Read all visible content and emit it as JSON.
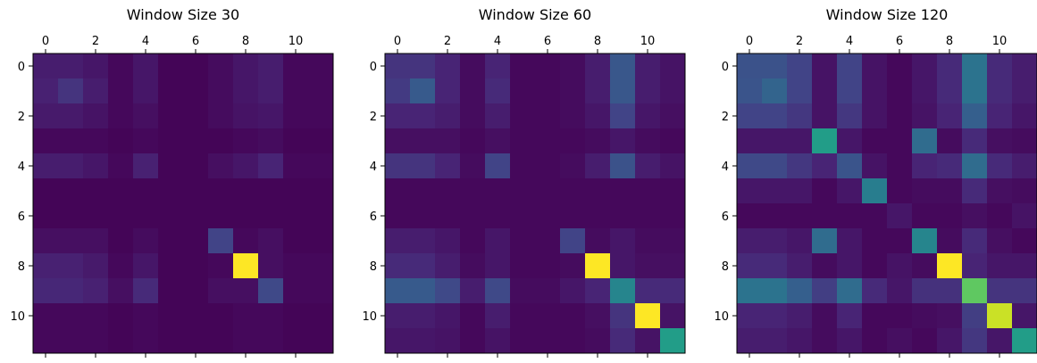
{
  "chart_data": [
    {
      "type": "heatmap",
      "title": "Window Size 30",
      "x_ticks": [
        "0",
        "2",
        "4",
        "6",
        "8",
        "10"
      ],
      "y_ticks": [
        "0",
        "2",
        "4",
        "6",
        "8",
        "10"
      ],
      "colormap": "viridis",
      "value_range": [
        0,
        1
      ],
      "matrix": [
        [
          0.08,
          0.08,
          0.06,
          0.02,
          0.06,
          0.01,
          0.01,
          0.03,
          0.06,
          0.08,
          0.02,
          0.02
        ],
        [
          0.09,
          0.15,
          0.08,
          0.02,
          0.06,
          0.01,
          0.01,
          0.03,
          0.06,
          0.08,
          0.02,
          0.02
        ],
        [
          0.07,
          0.07,
          0.05,
          0.02,
          0.04,
          0.01,
          0.01,
          0.03,
          0.05,
          0.06,
          0.02,
          0.02
        ],
        [
          0.02,
          0.02,
          0.02,
          0.01,
          0.02,
          0.01,
          0.01,
          0.01,
          0.02,
          0.03,
          0.01,
          0.01
        ],
        [
          0.08,
          0.08,
          0.06,
          0.02,
          0.09,
          0.01,
          0.01,
          0.04,
          0.06,
          0.1,
          0.02,
          0.02
        ],
        [
          0.01,
          0.01,
          0.01,
          0.01,
          0.01,
          0.01,
          0.01,
          0.01,
          0.01,
          0.01,
          0.01,
          0.01
        ],
        [
          0.01,
          0.01,
          0.01,
          0.01,
          0.01,
          0.01,
          0.01,
          0.01,
          0.01,
          0.01,
          0.01,
          0.01
        ],
        [
          0.04,
          0.04,
          0.04,
          0.01,
          0.03,
          0.01,
          0.01,
          0.2,
          0.02,
          0.04,
          0.01,
          0.01
        ],
        [
          0.09,
          0.09,
          0.07,
          0.02,
          0.06,
          0.01,
          0.01,
          0.02,
          1.0,
          0.04,
          0.02,
          0.02
        ],
        [
          0.11,
          0.11,
          0.09,
          0.04,
          0.12,
          0.01,
          0.01,
          0.04,
          0.04,
          0.22,
          0.02,
          0.02
        ],
        [
          0.02,
          0.02,
          0.02,
          0.01,
          0.02,
          0.01,
          0.01,
          0.01,
          0.02,
          0.02,
          0.01,
          0.01
        ],
        [
          0.02,
          0.02,
          0.02,
          0.01,
          0.02,
          0.01,
          0.01,
          0.01,
          0.02,
          0.02,
          0.01,
          0.01
        ]
      ]
    },
    {
      "type": "heatmap",
      "title": "Window Size 60",
      "x_ticks": [
        "0",
        "2",
        "4",
        "6",
        "8",
        "10"
      ],
      "y_ticks": [
        "0",
        "2",
        "4",
        "6",
        "8",
        "10"
      ],
      "colormap": "viridis",
      "value_range": [
        0,
        1
      ],
      "matrix": [
        [
          0.15,
          0.15,
          0.1,
          0.03,
          0.1,
          0.02,
          0.02,
          0.03,
          0.08,
          0.27,
          0.08,
          0.05
        ],
        [
          0.17,
          0.28,
          0.1,
          0.03,
          0.12,
          0.02,
          0.02,
          0.03,
          0.08,
          0.27,
          0.08,
          0.05
        ],
        [
          0.1,
          0.1,
          0.08,
          0.03,
          0.08,
          0.02,
          0.02,
          0.03,
          0.06,
          0.2,
          0.06,
          0.04
        ],
        [
          0.04,
          0.04,
          0.04,
          0.02,
          0.04,
          0.02,
          0.02,
          0.02,
          0.03,
          0.06,
          0.03,
          0.02
        ],
        [
          0.15,
          0.15,
          0.1,
          0.03,
          0.2,
          0.02,
          0.02,
          0.03,
          0.08,
          0.25,
          0.08,
          0.05
        ],
        [
          0.02,
          0.02,
          0.02,
          0.02,
          0.02,
          0.02,
          0.02,
          0.02,
          0.02,
          0.02,
          0.02,
          0.02
        ],
        [
          0.02,
          0.02,
          0.02,
          0.02,
          0.02,
          0.02,
          0.02,
          0.02,
          0.02,
          0.02,
          0.02,
          0.02
        ],
        [
          0.08,
          0.08,
          0.06,
          0.02,
          0.06,
          0.02,
          0.02,
          0.2,
          0.03,
          0.06,
          0.03,
          0.03
        ],
        [
          0.12,
          0.12,
          0.08,
          0.03,
          0.06,
          0.02,
          0.02,
          0.03,
          1.0,
          0.06,
          0.04,
          0.04
        ],
        [
          0.28,
          0.28,
          0.22,
          0.08,
          0.22,
          0.03,
          0.03,
          0.06,
          0.1,
          0.45,
          0.12,
          0.12
        ],
        [
          0.08,
          0.08,
          0.06,
          0.02,
          0.08,
          0.02,
          0.02,
          0.02,
          0.04,
          0.15,
          1.0,
          0.05
        ],
        [
          0.06,
          0.06,
          0.05,
          0.02,
          0.05,
          0.02,
          0.02,
          0.02,
          0.03,
          0.12,
          0.05,
          0.55
        ]
      ]
    },
    {
      "type": "heatmap",
      "title": "Window Size 120",
      "x_ticks": [
        "0",
        "2",
        "4",
        "6",
        "8",
        "10"
      ],
      "y_ticks": [
        "0",
        "2",
        "4",
        "6",
        "8",
        "10"
      ],
      "colormap": "viridis",
      "value_range": [
        0,
        1
      ],
      "matrix": [
        [
          0.25,
          0.25,
          0.2,
          0.05,
          0.2,
          0.05,
          0.02,
          0.06,
          0.12,
          0.38,
          0.12,
          0.08
        ],
        [
          0.26,
          0.32,
          0.2,
          0.05,
          0.2,
          0.05,
          0.02,
          0.06,
          0.12,
          0.38,
          0.12,
          0.08
        ],
        [
          0.2,
          0.2,
          0.16,
          0.05,
          0.16,
          0.05,
          0.02,
          0.05,
          0.1,
          0.3,
          0.1,
          0.06
        ],
        [
          0.06,
          0.06,
          0.06,
          0.55,
          0.06,
          0.02,
          0.02,
          0.35,
          0.03,
          0.12,
          0.04,
          0.03
        ],
        [
          0.22,
          0.22,
          0.16,
          0.1,
          0.26,
          0.05,
          0.02,
          0.1,
          0.12,
          0.35,
          0.12,
          0.08
        ],
        [
          0.06,
          0.06,
          0.06,
          0.02,
          0.06,
          0.42,
          0.02,
          0.03,
          0.03,
          0.12,
          0.04,
          0.03
        ],
        [
          0.02,
          0.02,
          0.02,
          0.02,
          0.02,
          0.02,
          0.06,
          0.02,
          0.02,
          0.04,
          0.02,
          0.05
        ],
        [
          0.08,
          0.08,
          0.06,
          0.35,
          0.06,
          0.02,
          0.02,
          0.45,
          0.03,
          0.12,
          0.04,
          0.02
        ],
        [
          0.12,
          0.12,
          0.08,
          0.03,
          0.06,
          0.02,
          0.05,
          0.03,
          1.0,
          0.1,
          0.06,
          0.06
        ],
        [
          0.38,
          0.38,
          0.3,
          0.18,
          0.35,
          0.12,
          0.06,
          0.14,
          0.14,
          0.75,
          0.15,
          0.15
        ],
        [
          0.1,
          0.1,
          0.08,
          0.03,
          0.1,
          0.02,
          0.02,
          0.03,
          0.04,
          0.18,
          0.92,
          0.06
        ],
        [
          0.08,
          0.08,
          0.06,
          0.03,
          0.06,
          0.02,
          0.04,
          0.02,
          0.06,
          0.16,
          0.06,
          0.55
        ]
      ]
    }
  ]
}
